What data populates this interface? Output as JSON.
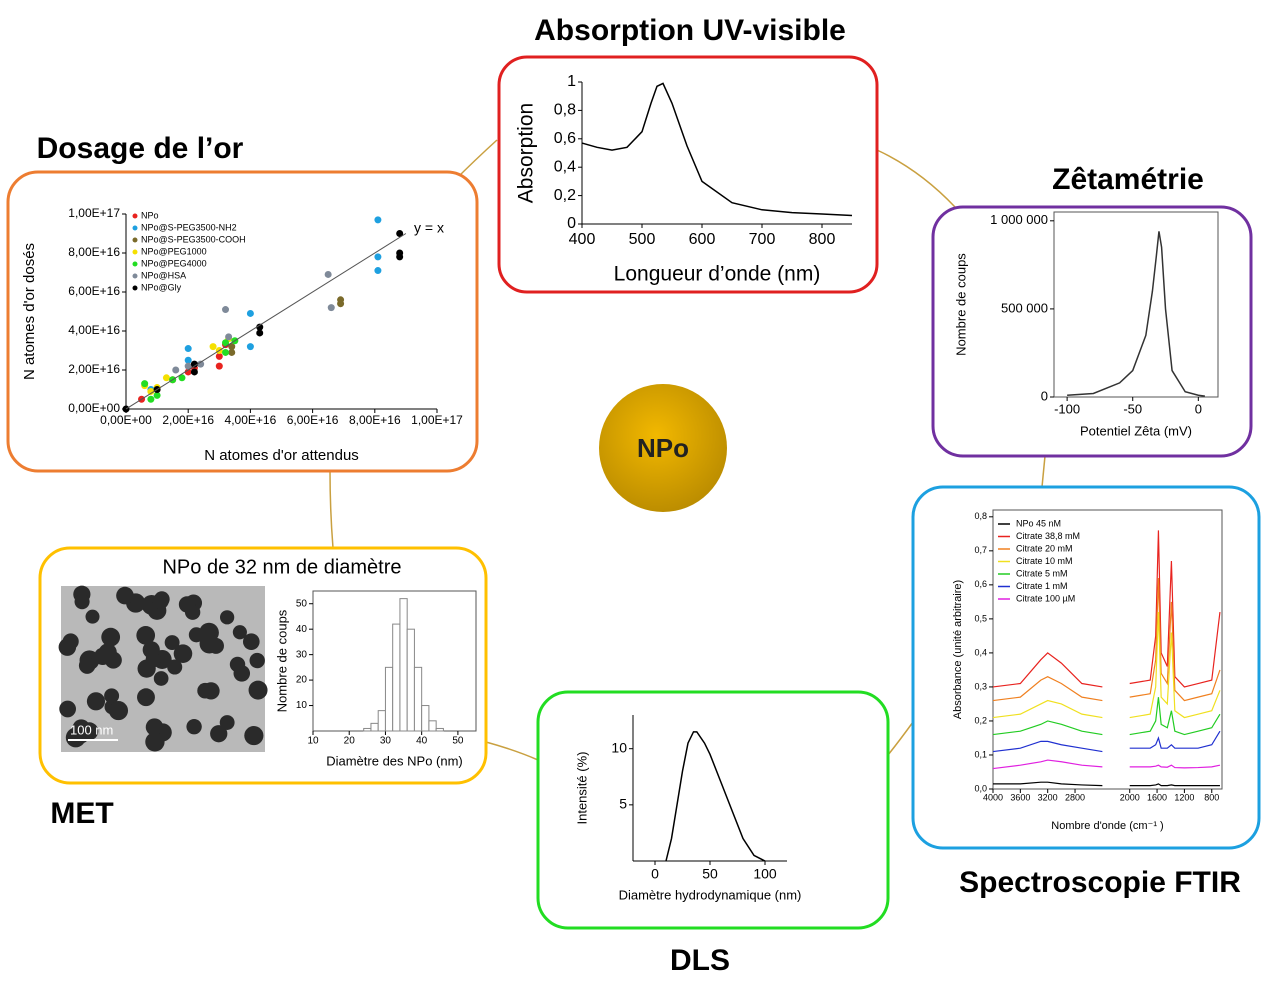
{
  "center": "NPo",
  "uv": {
    "title": "Absorption UV-visible",
    "chart": {
      "type": "line",
      "xlabel": "Longueur d’onde (nm)",
      "ylabel": "Absorption",
      "color": "#000000",
      "x": [
        400,
        425,
        450,
        475,
        500,
        515,
        525,
        535,
        550,
        575,
        600,
        650,
        700,
        750,
        800,
        850
      ],
      "values": [
        0.57,
        0.54,
        0.52,
        0.54,
        0.65,
        0.85,
        0.97,
        0.99,
        0.85,
        0.55,
        0.3,
        0.15,
        0.1,
        0.08,
        0.07,
        0.06
      ],
      "xlim": [
        400,
        850
      ],
      "xticks": [
        400,
        500,
        600,
        700,
        800
      ],
      "ylim": [
        0,
        1
      ],
      "yticks": [
        0,
        {
          "value": 0.2,
          "label": "0,2"
        },
        {
          "value": 0.4,
          "label": "0,4"
        },
        {
          "value": 0.6,
          "label": "0,6"
        },
        {
          "value": 0.8,
          "label": "0,8"
        },
        1
      ]
    }
  },
  "zeta": {
    "title": "Zêtamétrie",
    "chart": {
      "type": "line",
      "xlabel": "Potentiel Zêta (mV)",
      "ylabel": "Nombre de coups",
      "color": "#333333",
      "frame": true,
      "x": [
        -100,
        -80,
        -60,
        -50,
        -40,
        -35,
        -32,
        -30,
        -28,
        -25,
        -20,
        -10,
        0,
        5
      ],
      "values": [
        10000,
        20000,
        80000,
        150000,
        350000,
        600000,
        800000,
        940000,
        850000,
        500000,
        150000,
        30000,
        10000,
        5000
      ],
      "xlim": [
        -110,
        15
      ],
      "xticks": [
        -100,
        -50,
        0
      ],
      "ylim": [
        0,
        1050000
      ],
      "yticks": [
        0,
        {
          "value": 500000,
          "label": "500 000"
        },
        {
          "value": 1000000,
          "label": "1 000 000"
        }
      ]
    }
  },
  "dosage": {
    "title": "Dosage de l’or",
    "annotation": "y = x",
    "chart": {
      "type": "scatter",
      "xlabel": "N atomes d'or attendus",
      "ylabel": "N atomes d'or dosés",
      "xlim": [
        0,
        1e+17
      ],
      "ylim": [
        0,
        1e+17
      ],
      "xticks": [
        {
          "value": 0,
          "label": "0,00E+00"
        },
        {
          "value": 2e+16,
          "label": "2,00E+16"
        },
        {
          "value": 4e+16,
          "label": "4,00E+16"
        },
        {
          "value": 6e+16,
          "label": "6,00E+16"
        },
        {
          "value": 8e+16,
          "label": "8,00E+16"
        },
        {
          "value": 1e+17,
          "label": "1,00E+17"
        }
      ],
      "yticks": [
        {
          "value": 0,
          "label": "0,00E+00"
        },
        {
          "value": 2e+16,
          "label": "2,00E+16"
        },
        {
          "value": 4e+16,
          "label": "4,00E+16"
        },
        {
          "value": 6e+16,
          "label": "6,00E+16"
        },
        {
          "value": 8e+16,
          "label": "8,00E+16"
        },
        {
          "value": 1e+17,
          "label": "1,00E+17"
        }
      ],
      "series": [
        {
          "name": "NPo",
          "color": "#e8231f",
          "x": [
            5000000000000000.0,
            1e+16,
            1.5e+16,
            2e+16,
            2.2e+16,
            3e+16,
            3e+16,
            3.2e+16
          ],
          "y": [
            5000000000000000.0,
            1e+16,
            1.5e+16,
            1.9e+16,
            2.1e+16,
            2.2e+16,
            2.7e+16,
            3.3e+16
          ]
        },
        {
          "name": "NPo@S-PEG3500-NH2",
          "color": "#1ea0e0",
          "x": [
            8000000000000000.0,
            2e+16,
            2e+16,
            4e+16,
            4e+16,
            8.1e+16,
            8.1e+16,
            8.1e+16
          ],
          "y": [
            1e+16,
            2.5e+16,
            3.1e+16,
            4.9e+16,
            3.2e+16,
            9.7e+16,
            7.8e+16,
            7.1e+16
          ]
        },
        {
          "name": "NPo@S-PEG3500-COOH",
          "color": "#7a6a2a",
          "x": [
            3.4e+16,
            3.4e+16,
            6.9e+16,
            6.9e+16
          ],
          "y": [
            2.9e+16,
            3.2e+16,
            5.4e+16,
            5.6e+16
          ]
        },
        {
          "name": "NPo@PEG1000",
          "color": "#f5e000",
          "x": [
            6000000000000000.0,
            8000000000000000.0,
            1e+16,
            1.3e+16,
            2.8e+16,
            3e+16,
            3.3e+16
          ],
          "y": [
            1.2e+16,
            9000000000000000.0,
            1.1e+16,
            1.6e+16,
            3.2e+16,
            3e+16,
            3.6e+16
          ]
        },
        {
          "name": "NPo@PEG4000",
          "color": "#22dd22",
          "x": [
            6000000000000000.0,
            8000000000000000.0,
            1e+16,
            1.5e+16,
            1.8e+16,
            3.2e+16,
            3.5e+16,
            3.2e+16
          ],
          "y": [
            1.3e+16,
            5000000000000000.0,
            7000000000000000.0,
            1.5e+16,
            1.6e+16,
            3.4e+16,
            3.5e+16,
            2.9e+16
          ]
        },
        {
          "name": "NPo@HSA",
          "color": "#7f8a99",
          "x": [
            1.6e+16,
            2e+16,
            3.2e+16,
            3.3e+16,
            6.5e+16,
            6.6e+16,
            2.4e+16
          ],
          "y": [
            2e+16,
            2.2e+16,
            5.1e+16,
            3.7e+16,
            6.9e+16,
            5.2e+16,
            2.3e+16
          ]
        },
        {
          "name": "NPo@Gly",
          "color": "#000000",
          "x": [
            0,
            1e+16,
            2.2e+16,
            2.2e+16,
            4.3e+16,
            4.3e+16,
            8.8e+16,
            8.8e+16,
            8.8e+16
          ],
          "y": [
            0,
            1e+16,
            1.9e+16,
            2.3e+16,
            3.9e+16,
            4.2e+16,
            9e+16,
            8e+16,
            7.8e+16
          ]
        }
      ]
    }
  },
  "met": {
    "title": "MET",
    "subtitle": "NPo de 32 nm de diamètre",
    "scale_bar": "100 nm",
    "chart": {
      "type": "histogram",
      "xlabel": "Diamètre des NPo (nm)",
      "ylabel": "Nombre de coups",
      "frame": true,
      "color": "#ffffff",
      "bins": [
        24,
        26,
        28,
        30,
        32,
        34,
        36,
        38,
        40,
        42,
        44,
        46
      ],
      "counts": [
        1,
        3,
        8,
        25,
        42,
        52,
        40,
        25,
        10,
        4,
        1
      ],
      "xlim": [
        10,
        55
      ],
      "xticks": [
        10,
        20,
        30,
        40,
        50
      ],
      "ylim": [
        0,
        55
      ],
      "yticks": [
        10,
        20,
        30,
        40,
        50
      ]
    }
  },
  "dls": {
    "title": "DLS",
    "chart": {
      "type": "line",
      "xlabel": "Diamètre hydrodynamique (nm)",
      "ylabel": "Intensité (%)",
      "color": "#000000",
      "x": [
        10,
        15,
        20,
        25,
        30,
        35,
        38,
        45,
        50,
        60,
        70,
        80,
        90,
        100
      ],
      "values": [
        0,
        2,
        5,
        8,
        10.5,
        11.5,
        11.5,
        10.5,
        9.5,
        7,
        4.5,
        2,
        0.5,
        0
      ],
      "xlim": [
        -20,
        120
      ],
      "xticks": [
        0,
        50,
        100
      ],
      "ylim": [
        0,
        13
      ],
      "yticks": [
        5,
        10
      ]
    }
  },
  "ftir": {
    "title": "Spectroscopie FTIR",
    "chart": {
      "type": "line",
      "xlabel": "Nombre d'onde (cm⁻¹ )",
      "ylabel": "Absorbance (unité arbitraire)",
      "frame": true,
      "x": [
        4000,
        3600,
        3300,
        3200,
        3000,
        2700,
        2400,
        2200,
        2000,
        1700,
        1620,
        1580,
        1540,
        1450,
        1390,
        1340,
        1200,
        1000,
        800,
        680
      ],
      "xlim": [
        4000,
        650
      ],
      "xticks": [
        4000,
        3600,
        3200,
        2800,
        2000,
        1600,
        1200,
        800
      ],
      "ylim": [
        0,
        0.82
      ],
      "yticks": [
        {
          "value": 0,
          "label": "0,0"
        },
        {
          "value": 0.1,
          "label": "0,1"
        },
        {
          "value": 0.2,
          "label": "0,2"
        },
        {
          "value": 0.3,
          "label": "0,3"
        },
        {
          "value": 0.4,
          "label": "0,4"
        },
        {
          "value": 0.5,
          "label": "0,5"
        },
        {
          "value": 0.6,
          "label": "0,6"
        },
        {
          "value": 0.7,
          "label": "0,7"
        },
        {
          "value": 0.8,
          "label": "0,8"
        }
      ],
      "series": [
        {
          "name": "NPo 45 nM",
          "color": "#000000",
          "values": [
            0.015,
            0.015,
            0.02,
            0.02,
            0.015,
            0.012,
            0.01,
            null,
            0.01,
            0.01,
            0.012,
            0.015,
            0.01,
            0.01,
            0.012,
            0.01,
            0.01,
            0.01,
            0.01,
            0.01
          ]
        },
        {
          "name": "Citrate 38,8 mM",
          "color": "#e8231f",
          "values": [
            0.3,
            0.31,
            0.38,
            0.4,
            0.37,
            0.31,
            0.3,
            null,
            0.31,
            0.32,
            0.45,
            0.76,
            0.4,
            0.36,
            0.67,
            0.33,
            0.3,
            0.31,
            0.32,
            0.52
          ]
        },
        {
          "name": "Citrate 20 mM",
          "color": "#f08020",
          "values": [
            0.26,
            0.27,
            0.32,
            0.33,
            0.31,
            0.27,
            0.26,
            null,
            0.27,
            0.28,
            0.38,
            0.62,
            0.34,
            0.31,
            0.55,
            0.29,
            0.26,
            0.27,
            0.28,
            0.35
          ]
        },
        {
          "name": "Citrate 10 mM",
          "color": "#f0e020",
          "values": [
            0.21,
            0.22,
            0.25,
            0.26,
            0.25,
            0.22,
            0.21,
            null,
            0.21,
            0.22,
            0.3,
            0.52,
            0.27,
            0.25,
            0.46,
            0.23,
            0.21,
            0.22,
            0.23,
            0.29
          ]
        },
        {
          "name": "Citrate 5 mM",
          "color": "#22cc22",
          "values": [
            0.16,
            0.17,
            0.19,
            0.2,
            0.19,
            0.17,
            0.16,
            null,
            0.16,
            0.17,
            0.2,
            0.27,
            0.19,
            0.18,
            0.23,
            0.17,
            0.16,
            0.17,
            0.18,
            0.22
          ]
        },
        {
          "name": "Citrate 1 mM",
          "color": "#2030d0",
          "values": [
            0.11,
            0.12,
            0.14,
            0.14,
            0.13,
            0.12,
            0.11,
            null,
            0.12,
            0.12,
            0.13,
            0.15,
            0.12,
            0.12,
            0.13,
            0.12,
            0.12,
            0.12,
            0.13,
            0.17
          ]
        },
        {
          "name": "Citrate 100 µM",
          "color": "#e020e0",
          "values": [
            0.06,
            0.07,
            0.08,
            0.085,
            0.08,
            0.07,
            0.065,
            null,
            0.065,
            0.065,
            0.067,
            0.07,
            0.065,
            0.064,
            0.07,
            0.063,
            0.062,
            0.063,
            0.065,
            0.07
          ]
        }
      ]
    }
  }
}
